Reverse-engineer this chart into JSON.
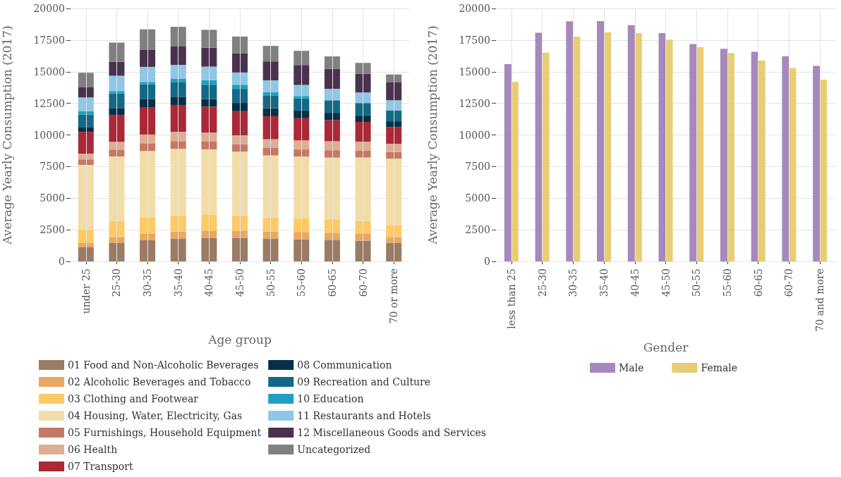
{
  "chart_data": [
    {
      "type": "bar",
      "stacked": true,
      "xlabel": "Age group",
      "ylabel": "Average Yearly Consumption (2017)",
      "categories": [
        "under 25",
        "25-30",
        "30-35",
        "35-40",
        "40-45",
        "45-50",
        "50-55",
        "55-60",
        "60-65",
        "60-70",
        "70 or more"
      ],
      "ylim": [
        0,
        20000
      ],
      "yticks": [
        0,
        2500,
        5000,
        7500,
        10000,
        12500,
        15000,
        17500,
        20000
      ],
      "grid": true,
      "legend": "bottom",
      "series": [
        {
          "name": "01 Food and Non-Alcoholic Beverages",
          "color": "#9a7b64",
          "values": [
            1110,
            1450,
            1670,
            1780,
            1840,
            1840,
            1780,
            1750,
            1710,
            1650,
            1450
          ]
        },
        {
          "name": "02 Alcoholic Beverages and Tobacco",
          "color": "#e8a864",
          "values": [
            340,
            480,
            540,
            580,
            600,
            600,
            590,
            580,
            560,
            560,
            480
          ]
        },
        {
          "name": "03 Clothing and Footwear",
          "color": "#fdca65",
          "values": [
            1040,
            1240,
            1280,
            1280,
            1240,
            1170,
            1110,
            1060,
            1060,
            1000,
            910
          ]
        },
        {
          "name": "04 Housing, Water, Electricity, Gas",
          "color": "#f2dda8",
          "values": [
            5140,
            5130,
            5240,
            5260,
            5180,
            5070,
            4900,
            4900,
            4880,
            5010,
            5290
          ]
        },
        {
          "name": "05 Furnishings, Household Equipment",
          "color": "#c67766",
          "values": [
            430,
            540,
            610,
            610,
            610,
            580,
            590,
            560,
            580,
            560,
            520
          ]
        },
        {
          "name": "06 Health",
          "color": "#dcae93",
          "values": [
            470,
            610,
            690,
            740,
            720,
            710,
            690,
            720,
            710,
            690,
            650
          ]
        },
        {
          "name": "07 Transport",
          "color": "#aa2837",
          "values": [
            1710,
            2140,
            2170,
            2120,
            2040,
            1910,
            1820,
            1750,
            1670,
            1560,
            1320
          ]
        },
        {
          "name": "08 Communication",
          "color": "#042f47",
          "values": [
            390,
            540,
            650,
            650,
            610,
            650,
            630,
            610,
            580,
            520,
            460
          ]
        },
        {
          "name": "09 Recreation and Culture",
          "color": "#126986",
          "values": [
            970,
            1150,
            1150,
            1130,
            1130,
            1110,
            1020,
            950,
            970,
            970,
            840
          ]
        },
        {
          "name": "10 Education",
          "color": "#20a0c0",
          "values": [
            280,
            190,
            190,
            280,
            370,
            330,
            260,
            200,
            60,
            null,
            null
          ]
        },
        {
          "name": "11 Restaurants and Hotels",
          "color": "#8fc7e5",
          "values": [
            1080,
            1210,
            1190,
            1110,
            1060,
            970,
            930,
            870,
            870,
            840,
            820
          ]
        },
        {
          "name": "12 Miscellaneous Goods and Services",
          "color": "#4a324f",
          "values": [
            800,
            1110,
            1370,
            1490,
            1500,
            1500,
            1490,
            1580,
            1580,
            1490,
            1410
          ]
        },
        {
          "name": "Uncategorized",
          "color": "#808080",
          "values": [
            1150,
            1510,
            1600,
            1520,
            1410,
            1340,
            1230,
            1120,
            980,
            850,
            630
          ]
        }
      ]
    },
    {
      "type": "bar",
      "xlabel": "Gender",
      "ylabel": "Average Yearly Consumption (2017)",
      "categories": [
        "less than 25",
        "25-30",
        "30-35",
        "35-40",
        "40-45",
        "45-50",
        "50-55",
        "55-60",
        "60-65",
        "60-70",
        "70 and more"
      ],
      "ylim": [
        0,
        20000
      ],
      "yticks": [
        0,
        2500,
        5000,
        7500,
        10000,
        12500,
        15000,
        17500,
        20000
      ],
      "grid": true,
      "legend": "bottom",
      "series": [
        {
          "name": "Male",
          "color": "#9d7bb5",
          "values": [
            15600,
            18080,
            18980,
            19000,
            18670,
            18050,
            17190,
            16810,
            16580,
            16230,
            15460
          ]
        },
        {
          "name": "Female",
          "color": "#e6c865",
          "values": [
            14190,
            16500,
            17770,
            18120,
            18050,
            17540,
            16930,
            16480,
            15880,
            15290,
            14370
          ]
        }
      ]
    }
  ]
}
